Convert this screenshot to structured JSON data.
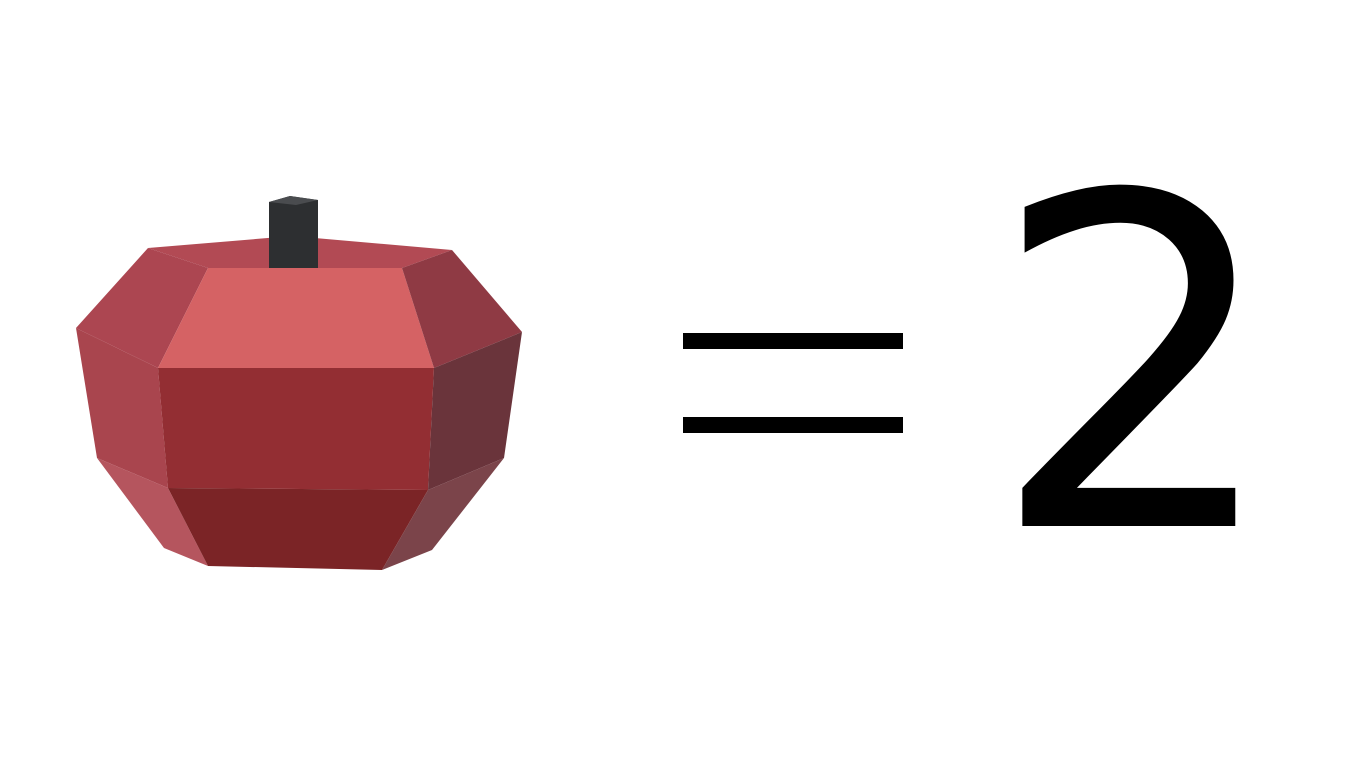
{
  "equation": {
    "item_icon": "apple-icon",
    "operator_icon": "equals-icon",
    "value": "2"
  },
  "colors": {
    "background": "#ffffff",
    "text": "#000000",
    "apple_red": "#c0464c",
    "stem": "#2d2f31"
  }
}
